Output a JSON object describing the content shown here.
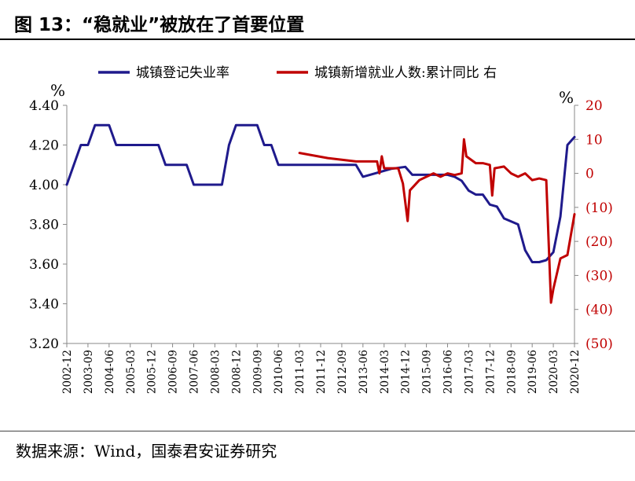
{
  "title": "图 13：“稳就业”被放在了首要位置",
  "source": "数据来源：Wind，国泰君安证券研究",
  "colors": {
    "left_series": "#1f1a8c",
    "right_series": "#c00000",
    "axis": "#888888"
  },
  "chart_data": {
    "type": "line",
    "title": "",
    "y_left": {
      "unit": "%",
      "min": 3.2,
      "max": 4.4,
      "ticks": [
        "3.20",
        "3.40",
        "3.60",
        "3.80",
        "4.00",
        "4.20",
        "4.40"
      ]
    },
    "y_right": {
      "unit": "%",
      "min": -50,
      "max": 20,
      "ticks": [
        "(50)",
        "(40)",
        "(30)",
        "(20)",
        "(10)",
        "0",
        "10",
        "20"
      ]
    },
    "x_tick_labels": [
      "2002-12",
      "2003-09",
      "2004-06",
      "2005-03",
      "2005-12",
      "2006-09",
      "2007-06",
      "2008-03",
      "2008-12",
      "2009-09",
      "2010-06",
      "2011-03",
      "2011-12",
      "2012-09",
      "2013-06",
      "2014-03",
      "2014-12",
      "2015-09",
      "2016-06",
      "2017-03",
      "2017-12",
      "2018-09",
      "2019-06",
      "2020-03",
      "2020-12"
    ],
    "legend": {
      "placement": "top",
      "items": [
        "城镇登记失业率",
        "城镇新增就业人数:累计同比 右"
      ]
    },
    "series": [
      {
        "name": "城镇登记失业率",
        "axis": "left",
        "points": [
          [
            "2002-12",
            4.0
          ],
          [
            "2003-06",
            4.2
          ],
          [
            "2003-09",
            4.2
          ],
          [
            "2003-12",
            4.3
          ],
          [
            "2004-06",
            4.3
          ],
          [
            "2004-09",
            4.2
          ],
          [
            "2005-12",
            4.2
          ],
          [
            "2006-03",
            4.2
          ],
          [
            "2006-06",
            4.1
          ],
          [
            "2007-03",
            4.1
          ],
          [
            "2007-06",
            4.0
          ],
          [
            "2008-06",
            4.0
          ],
          [
            "2008-09",
            4.2
          ],
          [
            "2008-12",
            4.3
          ],
          [
            "2009-09",
            4.3
          ],
          [
            "2009-12",
            4.2
          ],
          [
            "2010-03",
            4.2
          ],
          [
            "2010-06",
            4.1
          ],
          [
            "2013-03",
            4.1
          ],
          [
            "2013-06",
            4.04
          ],
          [
            "2013-09",
            4.05
          ],
          [
            "2014-06",
            4.08
          ],
          [
            "2014-12",
            4.09
          ],
          [
            "2015-03",
            4.05
          ],
          [
            "2015-09",
            4.05
          ],
          [
            "2016-06",
            4.05
          ],
          [
            "2016-09",
            4.04
          ],
          [
            "2016-12",
            4.02
          ],
          [
            "2017-03",
            3.97
          ],
          [
            "2017-06",
            3.95
          ],
          [
            "2017-09",
            3.95
          ],
          [
            "2017-12",
            3.9
          ],
          [
            "2018-03",
            3.89
          ],
          [
            "2018-06",
            3.83
          ],
          [
            "2018-12",
            3.8
          ],
          [
            "2019-03",
            3.67
          ],
          [
            "2019-06",
            3.61
          ],
          [
            "2019-09",
            3.61
          ],
          [
            "2019-12",
            3.62
          ],
          [
            "2020-03",
            3.66
          ],
          [
            "2020-06",
            3.84
          ],
          [
            "2020-09",
            4.2
          ],
          [
            "2020-12",
            4.24
          ]
        ]
      },
      {
        "name": "城镇新增就业人数:累计同比 右",
        "axis": "right",
        "points": [
          [
            "2011-03",
            6.0
          ],
          [
            "2012-03",
            4.5
          ],
          [
            "2013-03",
            3.5
          ],
          [
            "2013-12",
            3.5
          ],
          [
            "2014-01",
            0.0
          ],
          [
            "2014-02",
            5.0
          ],
          [
            "2014-03",
            1.5
          ],
          [
            "2014-06",
            1.5
          ],
          [
            "2014-09",
            1.5
          ],
          [
            "2014-11",
            -3.0
          ],
          [
            "2015-01",
            -14.0
          ],
          [
            "2015-02",
            -5.0
          ],
          [
            "2015-06",
            -2.0
          ],
          [
            "2015-09",
            -1.0
          ],
          [
            "2015-12",
            0.0
          ],
          [
            "2016-03",
            -1.0
          ],
          [
            "2016-06",
            0.0
          ],
          [
            "2016-09",
            -0.5
          ],
          [
            "2016-12",
            0.0
          ],
          [
            "2017-01",
            10.0
          ],
          [
            "2017-02",
            5.0
          ],
          [
            "2017-06",
            3.0
          ],
          [
            "2017-09",
            3.0
          ],
          [
            "2017-12",
            2.5
          ],
          [
            "2018-01",
            -6.5
          ],
          [
            "2018-02",
            1.5
          ],
          [
            "2018-06",
            2.0
          ],
          [
            "2018-09",
            0.0
          ],
          [
            "2018-12",
            -1.0
          ],
          [
            "2019-03",
            0.0
          ],
          [
            "2019-06",
            -2.0
          ],
          [
            "2019-09",
            -1.5
          ],
          [
            "2019-12",
            -2.0
          ],
          [
            "2020-01",
            -20.0
          ],
          [
            "2020-02",
            -38.0
          ],
          [
            "2020-03",
            -34.0
          ],
          [
            "2020-06",
            -25.0
          ],
          [
            "2020-09",
            -24.0
          ],
          [
            "2020-12",
            -12.0
          ]
        ]
      }
    ]
  }
}
